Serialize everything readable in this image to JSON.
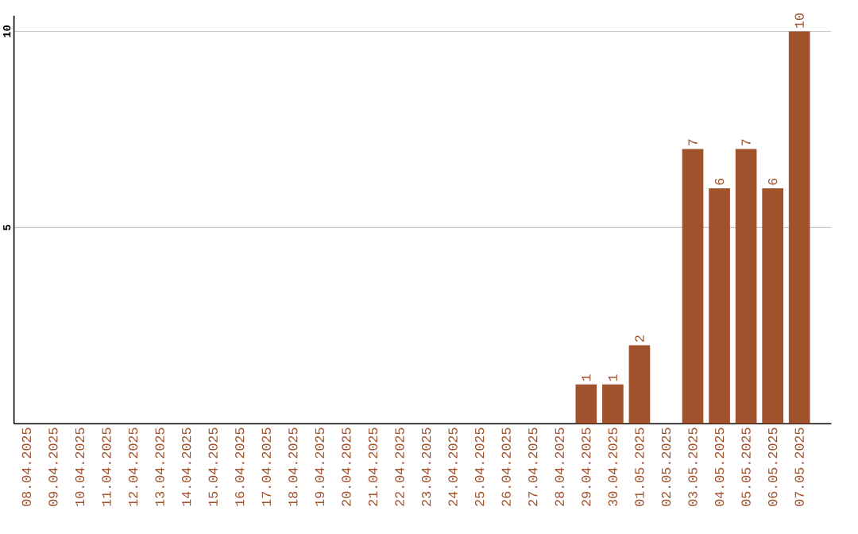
{
  "chart_data": {
    "type": "bar",
    "categories": [
      "08.04.2025",
      "09.04.2025",
      "10.04.2025",
      "11.04.2025",
      "12.04.2025",
      "13.04.2025",
      "14.04.2025",
      "15.04.2025",
      "16.04.2025",
      "17.04.2025",
      "18.04.2025",
      "19.04.2025",
      "20.04.2025",
      "21.04.2025",
      "22.04.2025",
      "23.04.2025",
      "24.04.2025",
      "25.04.2025",
      "26.04.2025",
      "27.04.2025",
      "28.04.2025",
      "29.04.2025",
      "30.04.2025",
      "01.05.2025",
      "02.05.2025",
      "03.05.2025",
      "04.05.2025",
      "05.05.2025",
      "06.05.2025",
      "07.05.2025"
    ],
    "values": [
      0,
      0,
      0,
      0,
      0,
      0,
      0,
      0,
      0,
      0,
      0,
      0,
      0,
      0,
      0,
      0,
      0,
      0,
      0,
      0,
      0,
      1,
      1,
      2,
      0,
      7,
      6,
      7,
      6,
      10
    ],
    "value_labels": [
      null,
      null,
      null,
      null,
      null,
      null,
      null,
      null,
      null,
      null,
      null,
      null,
      null,
      null,
      null,
      null,
      null,
      null,
      null,
      null,
      null,
      "1",
      "1",
      "2",
      null,
      "7",
      "6",
      "7",
      "6",
      "10"
    ],
    "color": "#a0522d",
    "ylim": [
      0,
      10.4
    ],
    "yticks": [
      5,
      10
    ],
    "grid": "y"
  }
}
